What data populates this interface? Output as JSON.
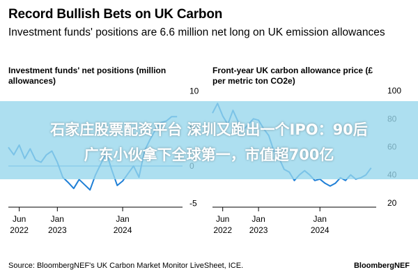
{
  "title": "Record Bullish Bets on UK Carbon",
  "subtitle": "Investment funds' positions are 6.6 million net long on UK emission allowances",
  "banner": {
    "line1": "石家庄股票配资平台 深圳又跑出一个IPO：90后",
    "line2": "广东小伙拿下全球第一，市值超700亿",
    "color": "#96d6ec"
  },
  "source": "Source: BloombergNEF's UK Carbon Market Monitor LiveSheet, ICE.",
  "brand": "BloombergNEF",
  "colors": {
    "line": "#1f7fd6",
    "zero_line": "#1f7fd6",
    "axis": "#000000"
  },
  "chart_data": [
    {
      "type": "line",
      "title": "Investment funds' net positions (million allowances)",
      "x_ticks": [
        "Jun 2022",
        "Jan 2023",
        "Jan 2024"
      ],
      "y_ticks": [
        10,
        5,
        0,
        -5
      ],
      "ylim": [
        -5.5,
        11
      ],
      "xlim": [
        "2022-04",
        "2024-12"
      ],
      "grid": false,
      "series": [
        {
          "x": [
            "2022-04",
            "2022-05",
            "2022-06",
            "2022-07",
            "2022-08",
            "2022-09",
            "2022-10",
            "2022-11",
            "2022-12",
            "2023-01",
            "2023-02",
            "2023-03",
            "2023-04",
            "2023-05",
            "2023-06",
            "2023-07",
            "2023-08",
            "2023-09",
            "2023-10",
            "2023-11",
            "2023-12",
            "2024-01",
            "2024-02",
            "2024-03",
            "2024-04",
            "2024-05",
            "2024-06",
            "2024-07",
            "2024-08",
            "2024-09",
            "2024-10",
            "2024-11"
          ],
          "values": [
            2.5,
            1.5,
            2.8,
            1.0,
            2.3,
            0.8,
            0.5,
            1.5,
            2.0,
            0.5,
            -1.5,
            -2.2,
            -3.0,
            -1.8,
            -2.5,
            -3.2,
            -1.2,
            0.3,
            1.8,
            -0.5,
            -2.6,
            -2.0,
            -1.0,
            0.0,
            -1.5,
            2.0,
            3.5,
            4.8,
            5.8,
            6.0,
            6.6,
            6.6
          ]
        }
      ]
    },
    {
      "type": "line",
      "title": "Front-year UK carbon allowance price (£ per metric ton CO2e)",
      "x_ticks": [
        "Jun 2022",
        "Jan 2023",
        "Jan 2024"
      ],
      "y_ticks": [
        100,
        80,
        60,
        40,
        20
      ],
      "ylim": [
        17,
        105
      ],
      "xlim": [
        "2022-04",
        "2024-12"
      ],
      "grid": false,
      "series": [
        {
          "x": [
            "2022-04",
            "2022-05",
            "2022-06",
            "2022-07",
            "2022-08",
            "2022-09",
            "2022-10",
            "2022-11",
            "2022-12",
            "2023-01",
            "2023-02",
            "2023-03",
            "2023-04",
            "2023-05",
            "2023-06",
            "2023-07",
            "2023-08",
            "2023-09",
            "2023-10",
            "2023-11",
            "2023-12",
            "2024-01",
            "2024-02",
            "2024-03",
            "2024-04",
            "2024-05",
            "2024-06",
            "2024-07",
            "2024-08",
            "2024-09",
            "2024-10",
            "2024-11"
          ],
          "values": [
            84,
            91,
            82,
            76,
            86,
            78,
            72,
            76,
            80,
            79,
            73,
            68,
            57,
            52,
            44,
            42,
            36,
            40,
            43,
            40,
            36,
            37,
            34,
            32,
            34,
            38,
            36,
            40,
            37,
            38,
            40,
            45
          ]
        }
      ]
    }
  ]
}
